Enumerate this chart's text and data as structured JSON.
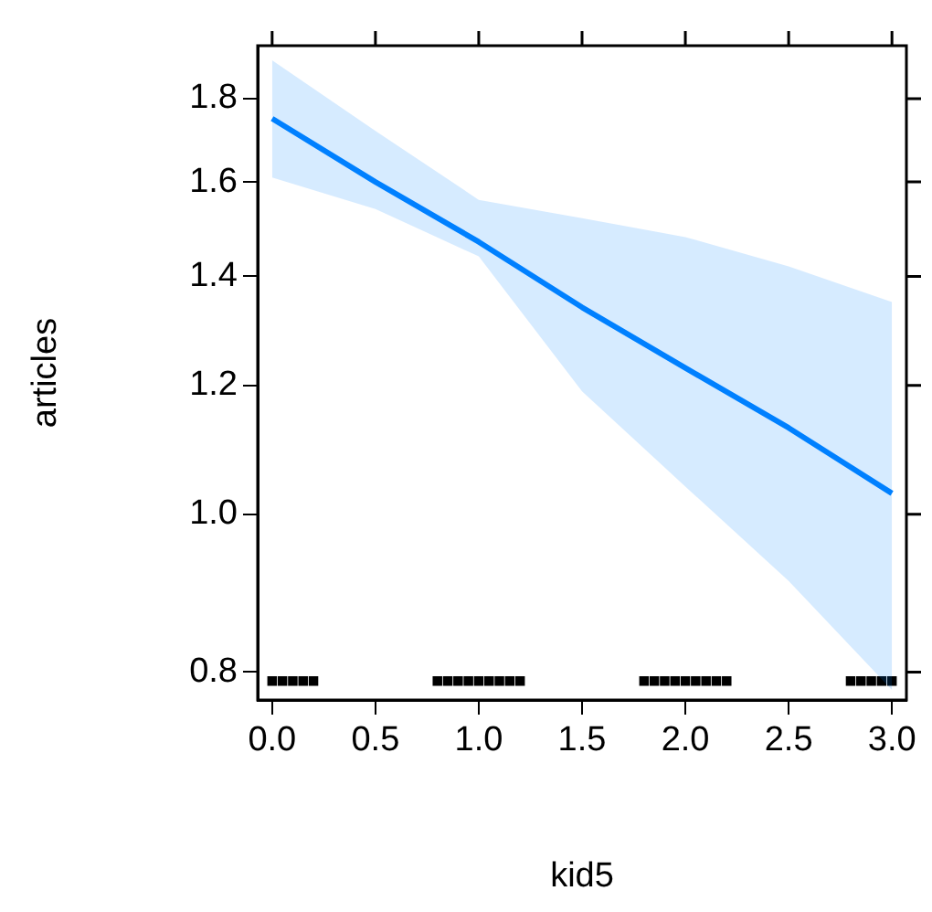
{
  "chart_data": {
    "type": "line",
    "xlabel": "kid5",
    "ylabel": "articles",
    "log": "y",
    "xlim": [
      -0.07,
      3.07
    ],
    "ylim": [
      0.769,
      1.94
    ],
    "xticks": [
      {
        "value": 0,
        "label": "0.0"
      },
      {
        "value": 0.5,
        "label": "0.5"
      },
      {
        "value": 1,
        "label": "1.0"
      },
      {
        "value": 1.5,
        "label": "1.5"
      },
      {
        "value": 2,
        "label": "2.0"
      },
      {
        "value": 2.5,
        "label": "2.5"
      },
      {
        "value": 3,
        "label": "3.0"
      }
    ],
    "yticks": [
      0.8,
      {
        "value": 1,
        "label": "1.0"
      },
      1.2,
      1.4,
      1.6,
      1.8
    ],
    "grid": false,
    "legend": false,
    "series": [
      {
        "color": "#0080ff",
        "x": [
          0,
          0.5,
          1,
          1.5,
          2,
          2.5,
          3
        ],
        "values": [
          1.75,
          1.6,
          1.47,
          1.34,
          1.23,
          1.13,
          1.03
        ],
        "lower": [
          1.61,
          1.54,
          1.44,
          1.19,
          1.04,
          0.91,
          0.78
        ],
        "upper": [
          1.9,
          1.72,
          1.56,
          1.52,
          1.48,
          1.42,
          1.35
        ]
      },
      {
        "type": "scatter",
        "marker": "square",
        "color": "#000000",
        "x": [
          0,
          0.05,
          0.1,
          0.15,
          0.2,
          0.8,
          0.85,
          0.9,
          0.95,
          1,
          1.05,
          1.1,
          1.15,
          1.2,
          1.8,
          1.85,
          1.9,
          1.95,
          2,
          2.05,
          2.1,
          2.15,
          2.2,
          2.8,
          2.85,
          2.9,
          2.95,
          3
        ],
        "values": [
          0.79,
          0.79,
          0.79,
          0.79,
          0.79,
          0.79,
          0.79,
          0.79,
          0.79,
          0.79,
          0.79,
          0.79,
          0.79,
          0.79,
          0.79,
          0.79,
          0.79,
          0.79,
          0.79,
          0.79,
          0.79,
          0.79,
          0.79,
          0.79,
          0.79,
          0.79,
          0.79,
          0.79
        ]
      }
    ]
  }
}
